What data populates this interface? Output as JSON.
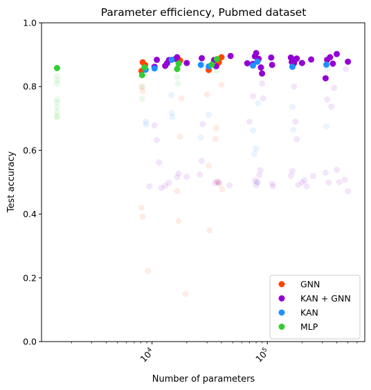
{
  "chart_data": {
    "type": "scatter",
    "title": "Parameter efficiency, Pubmed dataset",
    "xlabel": "Number of parameters",
    "ylabel": "Test accuracy",
    "x_scale": "log",
    "xlim": [
      1100,
      700000
    ],
    "ylim": [
      0.0,
      1.0
    ],
    "x_ticks": [
      {
        "value": 10000,
        "label": "10^4"
      },
      {
        "value": 100000,
        "label": "10^5"
      }
    ],
    "y_ticks": [
      "0.0",
      "0.2",
      "0.4",
      "0.6",
      "0.8",
      "1.0"
    ],
    "grid": false,
    "legend_position": "lower-right",
    "series": [
      {
        "name": "GNN",
        "color": "#ff4500",
        "best_points": [
          [
            8100,
            0.849
          ],
          [
            8300,
            0.876
          ],
          [
            8700,
            0.868
          ],
          [
            17500,
            0.882
          ],
          [
            31000,
            0.852
          ],
          [
            38000,
            0.876
          ],
          [
            40000,
            0.892
          ]
        ],
        "faded_points": [
          [
            8100,
            0.42
          ],
          [
            8300,
            0.392
          ],
          [
            8300,
            0.786
          ],
          [
            8100,
            0.799
          ],
          [
            9200,
            0.222
          ],
          [
            16500,
            0.472
          ],
          [
            17000,
            0.378
          ],
          [
            18000,
            0.763
          ],
          [
            17500,
            0.643
          ],
          [
            30000,
            0.775
          ],
          [
            31000,
            0.552
          ],
          [
            31500,
            0.349
          ],
          [
            36000,
            0.67
          ],
          [
            35500,
            0.636
          ],
          [
            36500,
            0.503
          ],
          [
            38500,
            0.495
          ],
          [
            40000,
            0.806
          ],
          [
            40500,
            0.478
          ],
          [
            37000,
            0.865
          ],
          [
            19500,
            0.15
          ]
        ]
      },
      {
        "name": "KAN + GNN",
        "color": "#9400d3",
        "best_points": [
          [
            10500,
            0.862
          ],
          [
            11000,
            0.884
          ],
          [
            13000,
            0.865
          ],
          [
            13500,
            0.873
          ],
          [
            14000,
            0.883
          ],
          [
            16000,
            0.887
          ],
          [
            16500,
            0.892
          ],
          [
            20000,
            0.874
          ],
          [
            27000,
            0.889
          ],
          [
            34500,
            0.883
          ],
          [
            36000,
            0.864
          ],
          [
            48000,
            0.896
          ],
          [
            67000,
            0.873
          ],
          [
            75000,
            0.871
          ],
          [
            78000,
            0.895
          ],
          [
            80000,
            0.905
          ],
          [
            84000,
            0.887
          ],
          [
            88000,
            0.86
          ],
          [
            90000,
            0.841
          ],
          [
            108000,
            0.891
          ],
          [
            110000,
            0.868
          ],
          [
            160000,
            0.891
          ],
          [
            163000,
            0.877
          ],
          [
            170000,
            0.873
          ],
          [
            175000,
            0.885
          ],
          [
            180000,
            0.888
          ],
          [
            200000,
            0.874
          ],
          [
            240000,
            0.885
          ],
          [
            320000,
            0.826
          ],
          [
            330000,
            0.884
          ],
          [
            350000,
            0.892
          ],
          [
            370000,
            0.872
          ],
          [
            400000,
            0.902
          ],
          [
            500000,
            0.878
          ]
        ],
        "faded_points": [
          [
            9500,
            0.487
          ],
          [
            10500,
            0.678
          ],
          [
            11000,
            0.632
          ],
          [
            11500,
            0.562
          ],
          [
            12000,
            0.482
          ],
          [
            13000,
            0.489
          ],
          [
            14000,
            0.498
          ],
          [
            16500,
            0.516
          ],
          [
            17000,
            0.527
          ],
          [
            20000,
            0.517
          ],
          [
            26000,
            0.524
          ],
          [
            27000,
            0.567
          ],
          [
            27500,
            0.682
          ],
          [
            35000,
            0.497
          ],
          [
            37000,
            0.5
          ],
          [
            38000,
            0.499
          ],
          [
            47000,
            0.49
          ],
          [
            70000,
            0.69
          ],
          [
            75000,
            0.77
          ],
          [
            78000,
            0.505
          ],
          [
            80000,
            0.49
          ],
          [
            82000,
            0.5
          ],
          [
            85000,
            0.522
          ],
          [
            87000,
            0.538
          ],
          [
            90000,
            0.81
          ],
          [
            92000,
            0.763
          ],
          [
            110000,
            0.495
          ],
          [
            112000,
            0.487
          ],
          [
            160000,
            0.52
          ],
          [
            165000,
            0.535
          ],
          [
            170000,
            0.8
          ],
          [
            175000,
            0.69
          ],
          [
            180000,
            0.635
          ],
          [
            185000,
            0.492
          ],
          [
            200000,
            0.499
          ],
          [
            210000,
            0.506
          ],
          [
            220000,
            0.487
          ],
          [
            250000,
            0.519
          ],
          [
            320000,
            0.53
          ],
          [
            330000,
            0.76
          ],
          [
            340000,
            0.499
          ],
          [
            360000,
            0.737
          ],
          [
            380000,
            0.796
          ],
          [
            400000,
            0.539
          ],
          [
            420000,
            0.5
          ],
          [
            470000,
            0.508
          ],
          [
            500000,
            0.472
          ],
          [
            480000,
            0.855
          ]
        ]
      },
      {
        "name": "KAN",
        "color": "#1e90ff",
        "best_points": [
          [
            8800,
            0.853
          ],
          [
            10500,
            0.857
          ],
          [
            14800,
            0.884
          ],
          [
            26500,
            0.868
          ],
          [
            31000,
            0.863
          ],
          [
            75000,
            0.866
          ],
          [
            82000,
            0.878
          ],
          [
            165000,
            0.862
          ],
          [
            325000,
            0.869
          ]
        ],
        "faded_points": [
          [
            8800,
            0.69
          ],
          [
            8900,
            0.681
          ],
          [
            14800,
            0.717
          ],
          [
            15000,
            0.705
          ],
          [
            14700,
            0.773
          ],
          [
            26500,
            0.64
          ],
          [
            31000,
            0.712
          ],
          [
            75000,
            0.662
          ],
          [
            77000,
            0.589
          ],
          [
            80000,
            0.605
          ],
          [
            82000,
            0.5
          ],
          [
            83000,
            0.748
          ],
          [
            165000,
            0.736
          ],
          [
            168000,
            0.665
          ],
          [
            325000,
            0.675
          ],
          [
            330000,
            0.855
          ]
        ]
      },
      {
        "name": "MLP",
        "color": "#32cd32",
        "best_points": [
          [
            1500,
            0.858
          ],
          [
            8200,
            0.836
          ],
          [
            8600,
            0.86
          ],
          [
            16500,
            0.855
          ],
          [
            17000,
            0.872
          ],
          [
            33000,
            0.869
          ],
          [
            36500,
            0.886
          ]
        ],
        "faded_points": [
          [
            1500,
            0.833
          ],
          [
            1500,
            0.82
          ],
          [
            1500,
            0.81
          ],
          [
            1500,
            0.76
          ],
          [
            1500,
            0.75
          ],
          [
            1500,
            0.735
          ],
          [
            1500,
            0.72
          ],
          [
            1500,
            0.708
          ],
          [
            1500,
            0.703
          ],
          [
            8200,
            0.762
          ],
          [
            8300,
            0.8
          ],
          [
            16500,
            0.83
          ],
          [
            16800,
            0.81
          ],
          [
            17000,
            0.86
          ],
          [
            33000,
            0.86
          ],
          [
            36500,
            0.85
          ]
        ]
      }
    ]
  }
}
